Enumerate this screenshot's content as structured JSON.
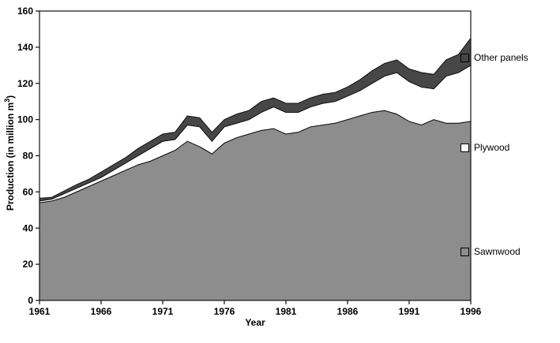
{
  "chart_data": {
    "type": "area",
    "stacked": true,
    "title": "",
    "xlabel": "Year",
    "ylabel": "Production (in million m³)",
    "ylabel_main": "Production (in million m",
    "ylabel_sup": "3",
    "ylabel_close": ")",
    "xlim": [
      1961,
      1996
    ],
    "ylim": [
      0,
      160
    ],
    "grid": false,
    "legend_position": "right",
    "x": [
      1961,
      1962,
      1963,
      1964,
      1965,
      1966,
      1967,
      1968,
      1969,
      1970,
      1971,
      1972,
      1973,
      1974,
      1975,
      1976,
      1977,
      1978,
      1979,
      1980,
      1981,
      1982,
      1983,
      1984,
      1985,
      1986,
      1987,
      1988,
      1989,
      1990,
      1991,
      1992,
      1993,
      1994,
      1995,
      1996
    ],
    "x_ticks": [
      1961,
      1966,
      1971,
      1976,
      1981,
      1986,
      1991,
      1996
    ],
    "y_ticks": [
      0,
      20,
      40,
      60,
      80,
      100,
      120,
      140,
      160
    ],
    "series": [
      {
        "name": "Sawnwood",
        "color": "#8d8d8d",
        "values": [
          54,
          55,
          57,
          60,
          63,
          66,
          69,
          72,
          75,
          77,
          80,
          83,
          88,
          85,
          81,
          87,
          90,
          92,
          94,
          95,
          92,
          93,
          96,
          97,
          98,
          100,
          102,
          104,
          105,
          103,
          99,
          97,
          100,
          98,
          98,
          99
        ]
      },
      {
        "name": "Plywood",
        "color": "#ffffff",
        "values": [
          1,
          1,
          2,
          2,
          2,
          2,
          3,
          4,
          5,
          7,
          8,
          6,
          9,
          11,
          7,
          9,
          8,
          8,
          10,
          12,
          12,
          11,
          11,
          12,
          12,
          13,
          14,
          16,
          19,
          23,
          22,
          21,
          17,
          26,
          28,
          31
        ]
      },
      {
        "name": "Other panels",
        "color": "#474747",
        "values": [
          1.5,
          1,
          1.5,
          2,
          2,
          3,
          3,
          3,
          4,
          4,
          4,
          4,
          5,
          5,
          5,
          4,
          5,
          5,
          6,
          5,
          5,
          5,
          5,
          5,
          5,
          5,
          6,
          7,
          7,
          7,
          7,
          8,
          8,
          9,
          10,
          15
        ]
      }
    ],
    "legend": [
      {
        "label": "Other panels",
        "swatch": "#474747"
      },
      {
        "label": "Plywood",
        "swatch": "#ffffff"
      },
      {
        "label": "Sawnwood",
        "swatch": "#8d8d8d"
      }
    ]
  }
}
